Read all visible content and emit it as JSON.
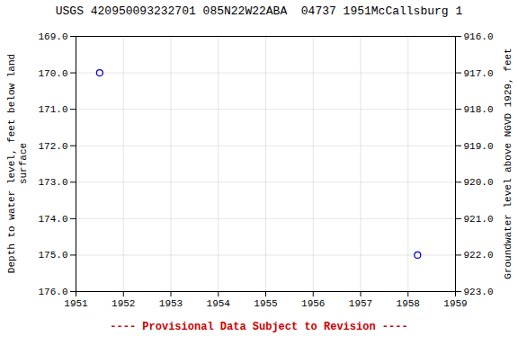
{
  "chart_data": {
    "type": "scatter",
    "title": "USGS 420950093232701 085N22W22ABA  04737 1951McCallsburg 1",
    "x": [
      1951.5,
      1958.2
    ],
    "values": [
      170.0,
      175.0
    ],
    "color": "#0000cc",
    "marker": "o",
    "xlim": [
      1951,
      1959
    ],
    "xticks": [
      1951,
      1952,
      1953,
      1954,
      1955,
      1956,
      1957,
      1958,
      1959
    ],
    "ylim": [
      176.0,
      169.0
    ],
    "yticks": [
      {
        "value": 169.0,
        "label": "169.0"
      },
      {
        "value": 170.0,
        "label": "170.0"
      },
      {
        "value": 171.0,
        "label": "171.0"
      },
      {
        "value": 172.0,
        "label": "172.0"
      },
      {
        "value": 173.0,
        "label": "173.0"
      },
      {
        "value": 174.0,
        "label": "174.0"
      },
      {
        "value": 175.0,
        "label": "175.0"
      },
      {
        "value": 176.0,
        "label": "176.0"
      }
    ],
    "y2lim": [
      923.0,
      916.0
    ],
    "y2ticks": [
      {
        "value": 923.0,
        "label": "923.0"
      },
      {
        "value": 922.0,
        "label": "922.0"
      },
      {
        "value": 921.0,
        "label": "921.0"
      },
      {
        "value": 920.0,
        "label": "920.0"
      },
      {
        "value": 919.0,
        "label": "919.0"
      },
      {
        "value": 918.0,
        "label": "918.0"
      },
      {
        "value": 917.0,
        "label": "917.0"
      },
      {
        "value": 916.0,
        "label": "916.0"
      }
    ],
    "ylabel": "Depth to water level, feet below land\nsurface",
    "y2label": "Groundwater level above NGVD 1929, feet",
    "grid": true,
    "annotations": [
      {
        "text": "---- Provisional Data Subject to Revision ----",
        "color": "#cc0000"
      }
    ]
  }
}
